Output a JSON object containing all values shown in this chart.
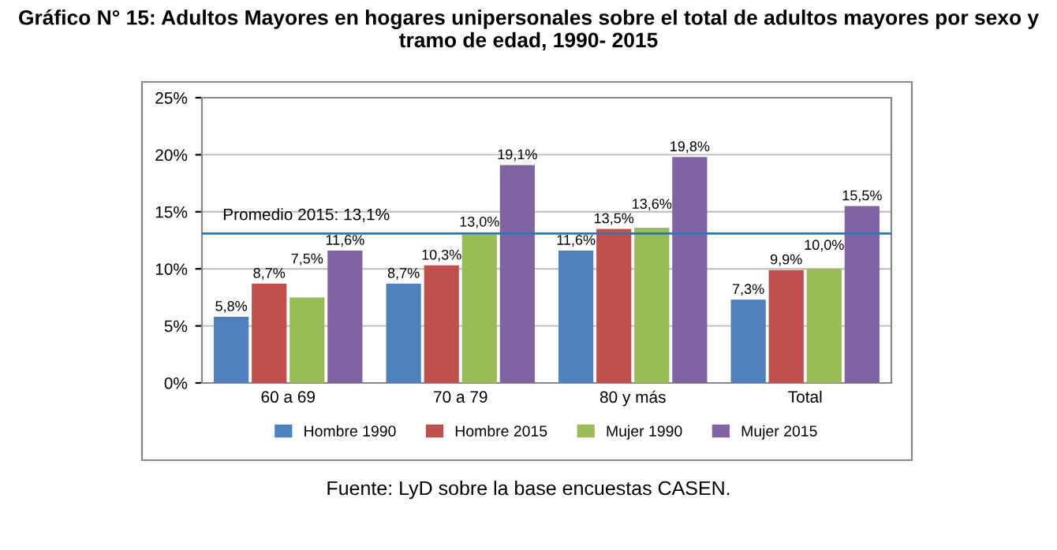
{
  "chart_data": {
    "type": "bar",
    "title": "Gráfico N° 15: Adultos Mayores en hogares unipersonales sobre el total de adultos mayores por sexo y tramo de edad, 1990- 2015",
    "categories": [
      "60 a 69",
      "70 a 79",
      "80 y más",
      "Total"
    ],
    "series": [
      {
        "name": "Hombre 1990",
        "color": "#4f81bd",
        "values": [
          5.8,
          8.7,
          11.6,
          7.3
        ],
        "value_labels": [
          "5,8%",
          "8,7%",
          "11,6%",
          "7,3%"
        ]
      },
      {
        "name": "Hombre 2015",
        "color": "#c0504d",
        "values": [
          8.7,
          10.3,
          13.5,
          9.9
        ],
        "value_labels": [
          "8,7%",
          "10,3%",
          "13,5%",
          "9,9%"
        ]
      },
      {
        "name": "Mujer 1990",
        "color": "#9bbb59",
        "values": [
          7.5,
          13.0,
          13.6,
          10.0
        ],
        "value_labels": [
          "7,5%",
          "13,0%",
          "13,6%",
          "10,0%"
        ]
      },
      {
        "name": "Mujer 2015",
        "color": "#8064a2",
        "values": [
          11.6,
          19.1,
          19.8,
          15.5
        ],
        "value_labels": [
          "11,6%",
          "19,1%",
          "19,8%",
          "15,5%"
        ]
      }
    ],
    "ylim": [
      0,
      25
    ],
    "yticks": [
      {
        "value": 0,
        "label": "0%"
      },
      {
        "value": 5,
        "label": "5%"
      },
      {
        "value": 10,
        "label": "10%"
      },
      {
        "value": 15,
        "label": "15%"
      },
      {
        "value": 20,
        "label": "20%"
      },
      {
        "value": 25,
        "label": "25%"
      }
    ],
    "grid": "y",
    "legend": "bottom",
    "ref_lines": [
      {
        "axis": "y",
        "value": 13.1,
        "label": "Promedio 2015: 13,1%",
        "color": "#2e75b6",
        "line_style": "solid"
      }
    ],
    "annotations": [
      "Fuente: LyD sobre la base encuestas CASEN."
    ]
  }
}
